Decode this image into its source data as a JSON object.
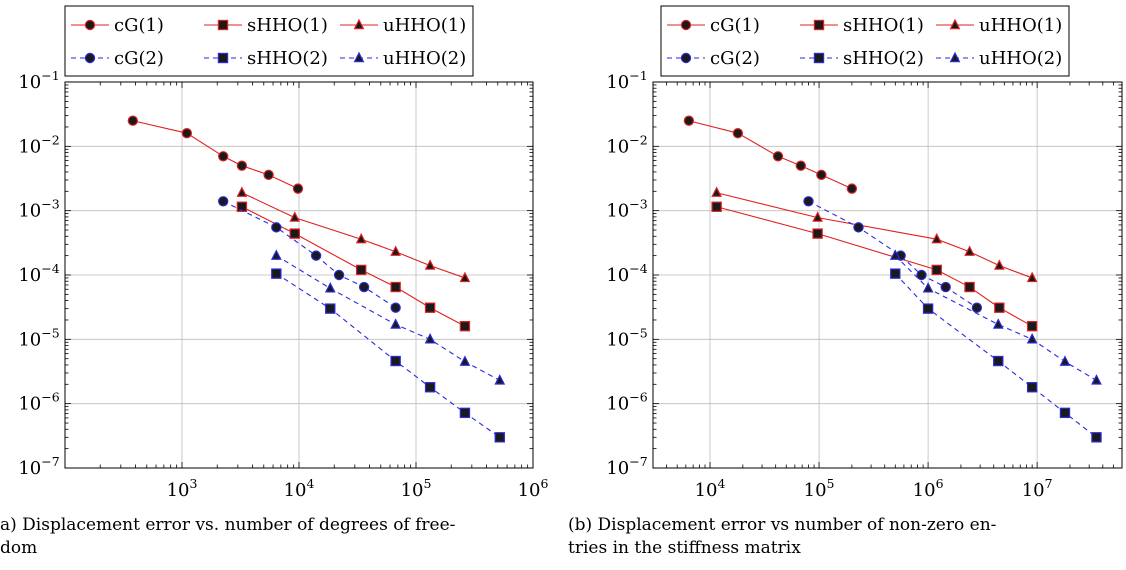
{
  "chart_data": [
    {
      "type": "line",
      "scale": "log-log",
      "caption": "a) Displacement error vs. number of degrees of free-\ndom",
      "xlim": [
        100.0,
        1000000.0
      ],
      "ylim": [
        1e-07,
        0.1
      ],
      "x_ticks": [
        "10^3",
        "10^4",
        "10^5",
        "10^6"
      ],
      "y_ticks": [
        "10^-1",
        "10^-2",
        "10^-3",
        "10^-4",
        "10^-5",
        "10^-6",
        "10^-7"
      ],
      "grid": true,
      "legend_position": "top",
      "series": [
        {
          "name": "cG(1)",
          "color": "#e02020",
          "marker": "circle",
          "style": "solid",
          "x": [
            380,
            1100,
            2250,
            3250,
            5500,
            9800
          ],
          "y": [
            0.025,
            0.016,
            0.007,
            0.005,
            0.0036,
            0.0022
          ]
        },
        {
          "name": "sHHO(1)",
          "color": "#e02020",
          "marker": "square",
          "style": "solid",
          "x": [
            3250,
            9200,
            34000,
            67000,
            132000,
            262000
          ],
          "y": [
            0.00115,
            0.00044,
            0.00012,
            6.5e-05,
            3.1e-05,
            1.6e-05
          ]
        },
        {
          "name": "uHHO(1)",
          "color": "#e02020",
          "marker": "triangle",
          "style": "solid",
          "x": [
            3250,
            9200,
            34000,
            67000,
            132000,
            262000
          ],
          "y": [
            0.0019,
            0.00078,
            0.00036,
            0.00023,
            0.00014,
            9e-05
          ]
        },
        {
          "name": "cG(2)",
          "color": "#2a2adf",
          "marker": "circle",
          "style": "dashed",
          "x": [
            2250,
            6400,
            14000,
            22000,
            36000,
            67000
          ],
          "y": [
            0.0014,
            0.00055,
            0.0002,
            0.0001,
            6.5e-05,
            3.1e-05
          ]
        },
        {
          "name": "sHHO(2)",
          "color": "#2a2adf",
          "marker": "square",
          "style": "dashed",
          "x": [
            6400,
            18500,
            67000,
            132000,
            262000,
            520000
          ],
          "y": [
            0.000105,
            3e-05,
            4.6e-06,
            1.8e-06,
            7.2e-07,
            3e-07
          ]
        },
        {
          "name": "uHHO(2)",
          "color": "#2a2adf",
          "marker": "triangle",
          "style": "dashed",
          "x": [
            6400,
            18500,
            67000,
            132000,
            262000,
            520000
          ],
          "y": [
            0.0002,
            6.2e-05,
            1.7e-05,
            1e-05,
            4.5e-06,
            2.3e-06
          ]
        }
      ]
    },
    {
      "type": "line",
      "scale": "log-log",
      "caption": "(b) Displacement error vs number of non-zero en-\ntries in the stiffness matrix",
      "xlim": [
        3000,
        60000000.0
      ],
      "ylim": [
        1e-07,
        0.1
      ],
      "x_ticks": [
        "10^4",
        "10^5",
        "10^6",
        "10^7"
      ],
      "y_ticks": [
        "10^-1",
        "10^-2",
        "10^-3",
        "10^-4",
        "10^-5",
        "10^-6",
        "10^-7"
      ],
      "grid": true,
      "legend_position": "top",
      "series": [
        {
          "name": "cG(1)",
          "color": "#e02020",
          "marker": "circle",
          "style": "solid",
          "x": [
            6400,
            18000,
            42000,
            68000,
            105000,
            200000
          ],
          "y": [
            0.025,
            0.016,
            0.007,
            0.005,
            0.0036,
            0.0022
          ]
        },
        {
          "name": "sHHO(1)",
          "color": "#e02020",
          "marker": "square",
          "style": "solid",
          "x": [
            11500,
            97000,
            1200000,
            2400000,
            4500000,
            9000000
          ],
          "y": [
            0.00115,
            0.00044,
            0.00012,
            6.5e-05,
            3.1e-05,
            1.6e-05
          ]
        },
        {
          "name": "uHHO(1)",
          "color": "#e02020",
          "marker": "triangle",
          "style": "solid",
          "x": [
            11500,
            97000,
            1200000,
            2400000,
            4500000,
            9000000
          ],
          "y": [
            0.0019,
            0.00078,
            0.00036,
            0.00023,
            0.00014,
            9e-05
          ]
        },
        {
          "name": "cG(2)",
          "color": "#2a2adf",
          "marker": "circle",
          "style": "dashed",
          "x": [
            80000,
            230000,
            560000,
            870000,
            1450000,
            2800000
          ],
          "y": [
            0.0014,
            0.00055,
            0.0002,
            0.0001,
            6.5e-05,
            3.1e-05
          ]
        },
        {
          "name": "sHHO(2)",
          "color": "#2a2adf",
          "marker": "square",
          "style": "dashed",
          "x": [
            500000,
            1000000,
            4400000,
            9000000,
            18000000,
            35000000
          ],
          "y": [
            0.000105,
            3e-05,
            4.6e-06,
            1.8e-06,
            7.2e-07,
            3e-07
          ]
        },
        {
          "name": "uHHO(2)",
          "color": "#2a2adf",
          "marker": "triangle",
          "style": "dashed",
          "x": [
            500000,
            1000000,
            4400000,
            9000000,
            18000000,
            35000000
          ],
          "y": [
            0.0002,
            6.2e-05,
            1.7e-05,
            1e-05,
            4.5e-06,
            2.3e-06
          ]
        }
      ]
    }
  ]
}
